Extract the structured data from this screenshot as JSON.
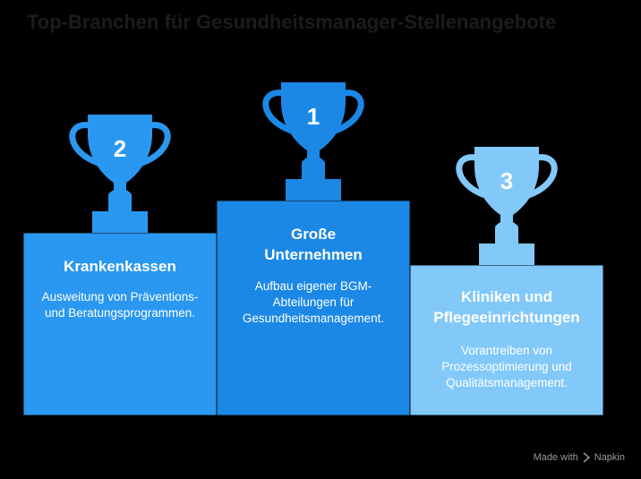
{
  "title": "Top-Branchen für Gesundheitsmanager-Stellenangebote",
  "podiums": [
    {
      "rank": "2",
      "title": "Krankenkassen",
      "description": "Ausweitung von Präventions- und Beratungsprogrammen."
    },
    {
      "rank": "1",
      "title": "Große Unternehmen",
      "description": "Aufbau eigener BGM-Abteilungen für Gesundheitsmanagement."
    },
    {
      "rank": "3",
      "title": "Kliniken und Pflegeeinrichtungen",
      "description": "Vorantreiben von Prozessoptimierung und Qualitätsmanagement."
    }
  ],
  "footer": {
    "text": "Made with",
    "brand": "Napkin"
  }
}
